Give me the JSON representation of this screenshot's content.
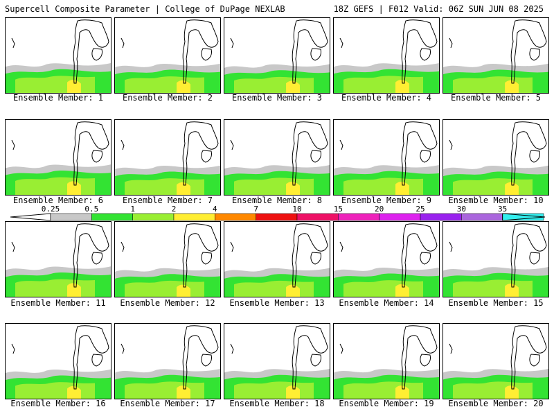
{
  "header": {
    "title": "Supercell Composite Parameter | College of DuPage NEXLAB",
    "run_info": "18Z GEFS | F012 Valid: 06Z SUN JUN 08 2025"
  },
  "members": [
    {
      "label": "Ensemble Member: 1",
      "intensity": 0.55
    },
    {
      "label": "Ensemble Member: 2",
      "intensity": 0.5
    },
    {
      "label": "Ensemble Member: 3",
      "intensity": 0.45
    },
    {
      "label": "Ensemble Member: 4",
      "intensity": 0.55
    },
    {
      "label": "Ensemble Member: 5",
      "intensity": 0.5
    },
    {
      "label": "Ensemble Member: 6",
      "intensity": 0.6
    },
    {
      "label": "Ensemble Member: 7",
      "intensity": 0.5
    },
    {
      "label": "Ensemble Member: 8",
      "intensity": 0.55
    },
    {
      "label": "Ensemble Member: 9",
      "intensity": 0.55
    },
    {
      "label": "Ensemble Member: 10",
      "intensity": 0.5
    },
    {
      "label": "Ensemble Member: 11",
      "intensity": 0.6
    },
    {
      "label": "Ensemble Member: 12",
      "intensity": 0.45
    },
    {
      "label": "Ensemble Member: 13",
      "intensity": 0.45
    },
    {
      "label": "Ensemble Member: 14",
      "intensity": 0.5
    },
    {
      "label": "Ensemble Member: 15",
      "intensity": 0.55
    },
    {
      "label": "Ensemble Member: 16",
      "intensity": 0.5
    },
    {
      "label": "Ensemble Member: 17",
      "intensity": 0.55
    },
    {
      "label": "Ensemble Member: 18",
      "intensity": 0.55
    },
    {
      "label": "Ensemble Member: 19",
      "intensity": 0.55
    },
    {
      "label": "Ensemble Member: 20",
      "intensity": 0.55
    }
  ],
  "colorbar": {
    "labels": [
      "0.25",
      "0.5",
      "1",
      "2",
      "4",
      "7",
      "10",
      "15",
      "20",
      "25",
      "30",
      "35"
    ],
    "colors": [
      "#c8c8c8",
      "#33e333",
      "#99ee33",
      "#ffee33",
      "#ff8800",
      "#ee1111",
      "#ee1166",
      "#ee22bb",
      "#dd22ee",
      "#9922ee",
      "#aa66dd",
      "#33eeee"
    ]
  }
}
